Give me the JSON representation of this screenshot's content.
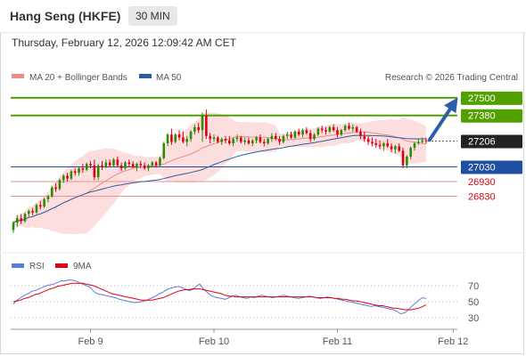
{
  "header": {
    "title": "Hang Seng (HKFE)",
    "timeframe": "30 MIN",
    "datetime": "Thursday, February 12, 2026 12:09:42 AM CET"
  },
  "colors": {
    "bull": "#2e8b00",
    "bear": "#e0000f",
    "ma20": "#f08a8a",
    "band_fill": "#fcd8d8",
    "ma50": "#2b5ea0",
    "resistance": "#52a000",
    "support": "#1f4fa0",
    "minor": "#f09090",
    "rsi": "#5b7fd6",
    "rsi_ma": "#e0000f",
    "arrow": "#2c5fa8"
  },
  "chart_data": [
    {
      "type": "candlestick",
      "legend": [
        {
          "name": "MA 20 + Bollinger Bands",
          "color": "#f08a8a"
        },
        {
          "name": "MA 50",
          "color": "#2b5ea0"
        }
      ],
      "credit": "Research © 2026 Trading Central",
      "x_ticks": [
        "Feb 9",
        "Feb 10",
        "Feb 11",
        "Feb 12"
      ],
      "x_tick_index": [
        20,
        52,
        84,
        114
      ],
      "ylim": [
        26500,
        27560
      ],
      "levels": [
        {
          "value": 27500,
          "label": "27500",
          "kind": "resistance"
        },
        {
          "value": 27380,
          "label": "27380",
          "kind": "resistance"
        },
        {
          "value": 27206,
          "label": "27206",
          "kind": "current"
        },
        {
          "value": 27030,
          "label": "27030",
          "kind": "support"
        },
        {
          "value": 26930,
          "label": "26930",
          "kind": "minor"
        },
        {
          "value": 26830,
          "label": "26830",
          "kind": "minor"
        }
      ],
      "arrow": {
        "from_value": 27206,
        "to_value": 27470
      },
      "candles": [
        [
          26600,
          26660,
          26580,
          26650
        ],
        [
          26650,
          26700,
          26620,
          26680
        ],
        [
          26680,
          26710,
          26640,
          26660
        ],
        [
          26660,
          26720,
          26650,
          26710
        ],
        [
          26710,
          26740,
          26690,
          26730
        ],
        [
          26730,
          26750,
          26700,
          26720
        ],
        [
          26720,
          26780,
          26710,
          26770
        ],
        [
          26770,
          26800,
          26740,
          26760
        ],
        [
          26760,
          26820,
          26750,
          26810
        ],
        [
          26810,
          26840,
          26790,
          26830
        ],
        [
          26830,
          26900,
          26820,
          26890
        ],
        [
          26890,
          26920,
          26860,
          26880
        ],
        [
          26880,
          26950,
          26870,
          26940
        ],
        [
          26940,
          26980,
          26920,
          26970
        ],
        [
          26970,
          26990,
          26930,
          26950
        ],
        [
          26950,
          27010,
          26940,
          27000
        ],
        [
          27000,
          27020,
          26970,
          26990
        ],
        [
          26990,
          27030,
          26970,
          27020
        ],
        [
          27020,
          27050,
          26990,
          27010
        ],
        [
          27010,
          27060,
          27000,
          27050
        ],
        [
          27050,
          27070,
          27020,
          27040
        ],
        [
          27040,
          27080,
          26940,
          26960
        ],
        [
          26960,
          27050,
          26940,
          27040
        ],
        [
          27040,
          27070,
          27010,
          27030
        ],
        [
          27030,
          27080,
          27020,
          27060
        ],
        [
          27060,
          27080,
          27030,
          27040
        ],
        [
          27040,
          27090,
          27030,
          27080
        ],
        [
          27080,
          27100,
          27030,
          27040
        ],
        [
          27040,
          27060,
          27000,
          27020
        ],
        [
          27020,
          27070,
          27010,
          27060
        ],
        [
          27060,
          27080,
          27030,
          27050
        ],
        [
          27050,
          27070,
          27020,
          27030
        ],
        [
          27030,
          27060,
          27000,
          27050
        ],
        [
          27050,
          27070,
          27020,
          27040
        ],
        [
          27040,
          27060,
          27010,
          27020
        ],
        [
          27020,
          27050,
          27000,
          27040
        ],
        [
          27040,
          27070,
          27030,
          27060
        ],
        [
          27060,
          27070,
          27030,
          27040
        ],
        [
          27040,
          27100,
          27030,
          27090
        ],
        [
          27090,
          27200,
          27080,
          27190
        ],
        [
          27190,
          27260,
          27170,
          27250
        ],
        [
          27250,
          27290,
          27180,
          27200
        ],
        [
          27200,
          27260,
          27190,
          27250
        ],
        [
          27250,
          27280,
          27210,
          27230
        ],
        [
          27230,
          27270,
          27190,
          27200
        ],
        [
          27200,
          27240,
          27170,
          27220
        ],
        [
          27220,
          27280,
          27200,
          27270
        ],
        [
          27270,
          27320,
          27250,
          27300
        ],
        [
          27300,
          27330,
          27260,
          27280
        ],
        [
          27280,
          27400,
          27200,
          27380
        ],
        [
          27380,
          27420,
          27220,
          27240
        ],
        [
          27240,
          27260,
          27190,
          27220
        ],
        [
          27220,
          27250,
          27200,
          27230
        ],
        [
          27230,
          27240,
          27190,
          27200
        ],
        [
          27200,
          27230,
          27180,
          27220
        ],
        [
          27220,
          27240,
          27190,
          27210
        ],
        [
          27210,
          27240,
          27180,
          27190
        ],
        [
          27190,
          27230,
          27170,
          27220
        ],
        [
          27220,
          27250,
          27200,
          27230
        ],
        [
          27230,
          27240,
          27190,
          27200
        ],
        [
          27200,
          27230,
          27180,
          27210
        ],
        [
          27210,
          27230,
          27180,
          27190
        ],
        [
          27190,
          27220,
          27170,
          27210
        ],
        [
          27210,
          27240,
          27190,
          27230
        ],
        [
          27230,
          27250,
          27190,
          27200
        ],
        [
          27200,
          27220,
          27170,
          27190
        ],
        [
          27190,
          27230,
          27180,
          27220
        ],
        [
          27220,
          27260,
          27200,
          27240
        ],
        [
          27240,
          27260,
          27210,
          27220
        ],
        [
          27220,
          27240,
          27180,
          27200
        ],
        [
          27200,
          27250,
          27190,
          27240
        ],
        [
          27240,
          27270,
          27220,
          27250
        ],
        [
          27250,
          27270,
          27220,
          27230
        ],
        [
          27230,
          27280,
          27220,
          27270
        ],
        [
          27270,
          27290,
          27240,
          27250
        ],
        [
          27250,
          27290,
          27230,
          27280
        ],
        [
          27280,
          27300,
          27250,
          27260
        ],
        [
          27260,
          27280,
          27200,
          27220
        ],
        [
          27220,
          27260,
          27210,
          27250
        ],
        [
          27250,
          27300,
          27240,
          27290
        ],
        [
          27290,
          27310,
          27260,
          27280
        ],
        [
          27280,
          27300,
          27250,
          27270
        ],
        [
          27270,
          27310,
          27260,
          27300
        ],
        [
          27300,
          27320,
          27270,
          27280
        ],
        [
          27280,
          27300,
          27230,
          27250
        ],
        [
          27250,
          27290,
          27240,
          27280
        ],
        [
          27280,
          27320,
          27270,
          27310
        ],
        [
          27310,
          27330,
          27280,
          27290
        ],
        [
          27290,
          27320,
          27270,
          27300
        ],
        [
          27300,
          27310,
          27260,
          27270
        ],
        [
          27270,
          27290,
          27220,
          27240
        ],
        [
          27240,
          27270,
          27200,
          27220
        ],
        [
          27220,
          27240,
          27180,
          27200
        ],
        [
          27200,
          27230,
          27170,
          27190
        ],
        [
          27190,
          27220,
          27160,
          27180
        ],
        [
          27180,
          27210,
          27150,
          27170
        ],
        [
          27170,
          27200,
          27140,
          27190
        ],
        [
          27190,
          27220,
          27160,
          27170
        ],
        [
          27170,
          27190,
          27130,
          27150
        ],
        [
          27150,
          27180,
          27120,
          27170
        ],
        [
          27170,
          27190,
          27130,
          27140
        ],
        [
          27140,
          27160,
          27020,
          27040
        ],
        [
          27040,
          27110,
          27020,
          27100
        ],
        [
          27100,
          27170,
          27080,
          27160
        ],
        [
          27160,
          27200,
          27140,
          27190
        ],
        [
          27190,
          27220,
          27180,
          27200
        ],
        [
          27200,
          27230,
          27190,
          27210
        ],
        [
          27210,
          27230,
          27190,
          27206
        ]
      ]
    },
    {
      "type": "line",
      "legend": [
        {
          "name": "RSI",
          "color": "#5b7fd6"
        },
        {
          "name": "9MA",
          "color": "#e0000f"
        }
      ],
      "ylim": [
        20,
        80
      ],
      "y_ticks": [
        70,
        50,
        30
      ],
      "series": [
        {
          "values": [
            47,
            52,
            55,
            58,
            60,
            63,
            64,
            66,
            68,
            70,
            71,
            72,
            74,
            76,
            76,
            77,
            77,
            76,
            74,
            72,
            70,
            68,
            63,
            60,
            59,
            58,
            57,
            56,
            55,
            53,
            52,
            51,
            50,
            49,
            49,
            50,
            51,
            53,
            55,
            57,
            60,
            62,
            65,
            67,
            68,
            69,
            68,
            66,
            64,
            65,
            69,
            72,
            66,
            62,
            58,
            56,
            55,
            54,
            53,
            55,
            57,
            58,
            56,
            55,
            54,
            56,
            55,
            57,
            58,
            57,
            56,
            55,
            56,
            57,
            58,
            57,
            56,
            55,
            54,
            55,
            56,
            57,
            56,
            55,
            54,
            55,
            56,
            55,
            54,
            53,
            52,
            51,
            50,
            49,
            48,
            47,
            46,
            45,
            44,
            45,
            44,
            43,
            42,
            41,
            40,
            38,
            35,
            36,
            39,
            44,
            48,
            52,
            55,
            54
          ]
        },
        {
          "values": [
            50,
            51,
            52,
            54,
            55,
            57,
            59,
            60,
            62,
            64,
            66,
            67,
            69,
            70,
            71,
            72,
            73,
            73,
            73,
            73,
            72,
            71,
            70,
            68,
            66,
            64,
            62,
            60,
            59,
            58,
            57,
            56,
            55,
            54,
            53,
            52,
            52,
            52,
            52,
            53,
            54,
            55,
            57,
            59,
            61,
            63,
            64,
            65,
            65,
            66,
            66,
            66,
            65,
            64,
            63,
            62,
            61,
            60,
            58,
            57,
            57,
            56,
            56,
            56,
            56,
            56,
            56,
            56,
            56,
            56,
            56,
            56,
            56,
            56,
            56,
            56,
            56,
            56,
            56,
            56,
            56,
            56,
            56,
            55,
            55,
            55,
            55,
            55,
            54,
            54,
            53,
            53,
            52,
            51,
            51,
            50,
            49,
            48,
            47,
            46,
            45,
            45,
            44,
            43,
            42,
            42,
            41,
            40,
            40,
            40,
            41,
            42,
            44,
            46
          ]
        }
      ]
    }
  ]
}
